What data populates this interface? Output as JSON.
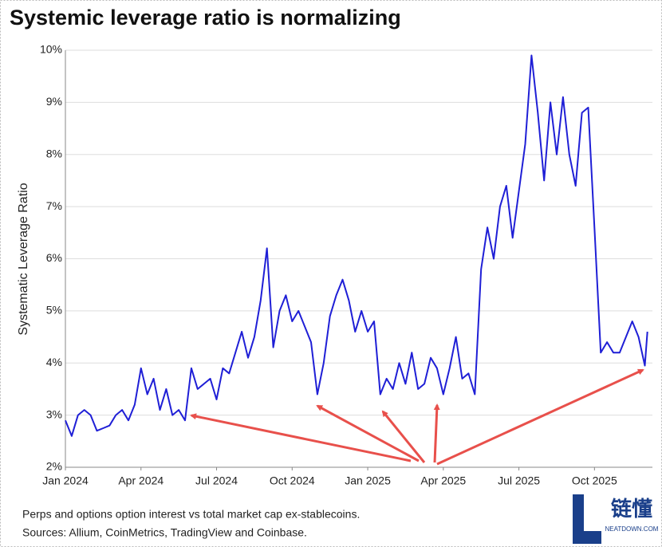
{
  "chart_data": {
    "type": "line",
    "title": "Systemic leverage ratio is normalizing",
    "ylabel": "Systematic Leverage Ratio",
    "x": [
      0,
      0.25,
      0.5,
      0.75,
      1,
      1.25,
      1.5,
      1.75,
      2,
      2.25,
      2.5,
      2.75,
      3,
      3.25,
      3.5,
      3.75,
      4,
      4.25,
      4.5,
      4.75,
      5,
      5.25,
      5.5,
      5.75,
      6,
      6.25,
      6.5,
      6.75,
      7,
      7.25,
      7.5,
      7.75,
      8,
      8.25,
      8.5,
      8.75,
      9,
      9.25,
      9.5,
      9.75,
      10,
      10.25,
      10.5,
      10.75,
      11,
      11.25,
      11.5,
      11.75,
      12,
      12.25,
      12.5,
      12.75,
      13,
      13.25,
      13.5,
      13.75,
      14,
      14.25,
      14.5,
      14.75,
      15,
      15.25,
      15.5,
      15.75,
      16,
      16.25,
      16.5,
      16.75,
      17,
      17.25,
      17.5,
      17.75,
      18,
      18.25,
      18.5,
      18.75,
      19,
      19.25,
      19.5,
      19.75,
      20,
      20.25,
      20.5,
      20.75,
      21,
      21.25,
      21.5,
      21.75,
      22,
      22.25,
      22.5,
      22.75,
      23,
      23.1
    ],
    "series": [
      {
        "color": "#1f1fd6",
        "values": [
          2.9,
          2.6,
          3.0,
          3.1,
          3.0,
          2.7,
          2.75,
          2.8,
          3.0,
          3.1,
          2.9,
          3.2,
          3.9,
          3.4,
          3.7,
          3.1,
          3.5,
          3.0,
          3.1,
          2.9,
          3.9,
          3.5,
          3.6,
          3.7,
          3.3,
          3.9,
          3.8,
          4.2,
          4.6,
          4.1,
          4.5,
          5.2,
          6.2,
          4.3,
          5.0,
          5.3,
          4.8,
          5.0,
          4.7,
          4.4,
          3.4,
          4.0,
          4.9,
          5.3,
          5.6,
          5.2,
          4.6,
          5.0,
          4.6,
          4.8,
          3.4,
          3.7,
          3.5,
          4.0,
          3.6,
          4.2,
          3.5,
          3.6,
          4.1,
          3.9,
          3.4,
          3.9,
          4.5,
          3.7,
          3.8,
          3.4,
          5.8,
          6.6,
          6.0,
          7.0,
          7.4,
          6.4,
          7.3,
          8.2,
          9.9,
          8.8,
          7.5,
          9.0,
          8.0,
          9.1,
          8.0,
          7.4,
          8.8,
          8.9,
          6.6,
          4.2,
          4.4,
          4.2,
          4.2,
          4.5,
          4.8,
          4.5,
          3.95,
          4.6
        ]
      }
    ],
    "xlim": [
      0,
      23.3
    ],
    "xticks": [
      {
        "value": 0,
        "label": "Jan 2024"
      },
      {
        "value": 3,
        "label": "Apr 2024"
      },
      {
        "value": 6,
        "label": "Jul 2024"
      },
      {
        "value": 9,
        "label": "Oct 2024"
      },
      {
        "value": 12,
        "label": "Jan 2025"
      },
      {
        "value": 15,
        "label": "Apr 2025"
      },
      {
        "value": 18,
        "label": "Jul 2025"
      },
      {
        "value": 21,
        "label": "Oct 2025"
      }
    ],
    "ylim": [
      2,
      10
    ],
    "yticks": [
      {
        "value": 2,
        "label": "2%"
      },
      {
        "value": 3,
        "label": "3%"
      },
      {
        "value": 4,
        "label": "4%"
      },
      {
        "value": 5,
        "label": "5%"
      },
      {
        "value": 6,
        "label": "6%"
      },
      {
        "value": 7,
        "label": "7%"
      },
      {
        "value": 8,
        "label": "8%"
      },
      {
        "value": 9,
        "label": "9%"
      },
      {
        "value": 10,
        "label": "10%"
      }
    ],
    "grid": true
  },
  "notes": [
    "Perps and options option interest vs total market cap ex-stablecoins.",
    "Sources: Allium, CoinMetrics, TradingView and Coinbase."
  ],
  "logo": {
    "name": "链懂",
    "site": "NEATDOWN.COM"
  }
}
